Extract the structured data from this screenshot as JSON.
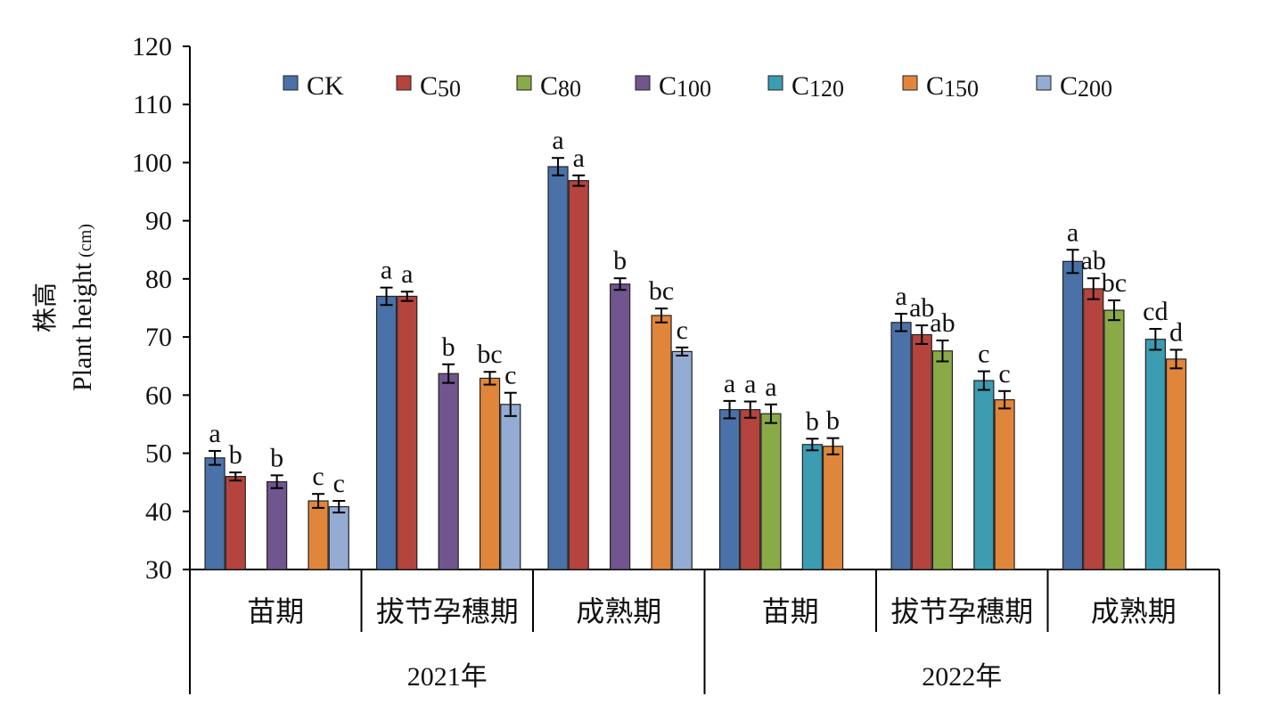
{
  "chart_data": {
    "type": "bar",
    "title": "",
    "ylabel_cn": "株高",
    "ylabel_en": "Plant height",
    "ylabel_unit": "(cm)",
    "ylim": [
      30,
      120
    ],
    "yticks": [
      30,
      40,
      50,
      60,
      70,
      80,
      90,
      100,
      110,
      120
    ],
    "grid": false,
    "legend_position": "top",
    "series": [
      {
        "name": "CK",
        "label_main": "CK",
        "label_sub": "",
        "color": "#4a72a8"
      },
      {
        "name": "C50",
        "label_main": "C",
        "label_sub": "50",
        "color": "#b5443e"
      },
      {
        "name": "C80",
        "label_main": "C",
        "label_sub": "80",
        "color": "#8aaa48"
      },
      {
        "name": "C100",
        "label_main": "C",
        "label_sub": "100",
        "color": "#71558f"
      },
      {
        "name": "C120",
        "label_main": "C",
        "label_sub": "120",
        "color": "#3c9cb2"
      },
      {
        "name": "C150",
        "label_main": "C",
        "label_sub": "150",
        "color": "#e0863a"
      },
      {
        "name": "C200",
        "label_main": "C",
        "label_sub": "200",
        "color": "#94abd4"
      }
    ],
    "years": [
      {
        "label": "2021年",
        "stages": [
          {
            "label": "苗期",
            "bars": [
              {
                "series": "CK",
                "value": 49.2,
                "error": 1.2,
                "letter": "a"
              },
              {
                "series": "C50",
                "value": 46.0,
                "error": 0.7,
                "letter": "b"
              },
              {
                "series": "C100",
                "value": 45.1,
                "error": 1.1,
                "letter": "b"
              },
              {
                "series": "C150",
                "value": 41.8,
                "error": 1.2,
                "letter": "c"
              },
              {
                "series": "C200",
                "value": 40.8,
                "error": 1.0,
                "letter": "c"
              }
            ]
          },
          {
            "label": "拔节孕穗期",
            "bars": [
              {
                "series": "CK",
                "value": 77.0,
                "error": 1.5,
                "letter": "a"
              },
              {
                "series": "C50",
                "value": 77.0,
                "error": 0.8,
                "letter": "a"
              },
              {
                "series": "C100",
                "value": 63.7,
                "error": 1.6,
                "letter": "b"
              },
              {
                "series": "C150",
                "value": 62.9,
                "error": 1.1,
                "letter": "bc"
              },
              {
                "series": "C200",
                "value": 58.4,
                "error": 2.0,
                "letter": "c"
              }
            ]
          },
          {
            "label": "成熟期",
            "bars": [
              {
                "series": "CK",
                "value": 99.3,
                "error": 1.5,
                "letter": "a"
              },
              {
                "series": "C50",
                "value": 96.9,
                "error": 0.9,
                "letter": "a"
              },
              {
                "series": "C100",
                "value": 79.1,
                "error": 1.0,
                "letter": "b"
              },
              {
                "series": "C150",
                "value": 73.7,
                "error": 1.2,
                "letter": "bc"
              },
              {
                "series": "C200",
                "value": 67.5,
                "error": 0.7,
                "letter": "c"
              }
            ]
          }
        ]
      },
      {
        "label": "2022年",
        "stages": [
          {
            "label": "苗期",
            "bars": [
              {
                "series": "CK",
                "value": 57.5,
                "error": 1.5,
                "letter": "a"
              },
              {
                "series": "C50",
                "value": 57.5,
                "error": 1.4,
                "letter": "a"
              },
              {
                "series": "C80",
                "value": 56.8,
                "error": 1.6,
                "letter": "a"
              },
              {
                "series": "C120",
                "value": 51.5,
                "error": 1.0,
                "letter": "b"
              },
              {
                "series": "C150",
                "value": 51.2,
                "error": 1.4,
                "letter": "b"
              }
            ]
          },
          {
            "label": "拔节孕穗期",
            "bars": [
              {
                "series": "CK",
                "value": 72.5,
                "error": 1.5,
                "letter": "a"
              },
              {
                "series": "C50",
                "value": 70.4,
                "error": 1.6,
                "letter": "ab"
              },
              {
                "series": "C80",
                "value": 67.6,
                "error": 1.8,
                "letter": "ab"
              },
              {
                "series": "C120",
                "value": 62.5,
                "error": 1.6,
                "letter": "c"
              },
              {
                "series": "C150",
                "value": 59.2,
                "error": 1.5,
                "letter": "c"
              }
            ]
          },
          {
            "label": "成熟期",
            "bars": [
              {
                "series": "CK",
                "value": 83.0,
                "error": 2.0,
                "letter": "a"
              },
              {
                "series": "C50",
                "value": 78.3,
                "error": 1.8,
                "letter": "ab"
              },
              {
                "series": "C80",
                "value": 74.6,
                "error": 1.7,
                "letter": "bc"
              },
              {
                "series": "C120",
                "value": 69.6,
                "error": 1.8,
                "letter": "cd"
              },
              {
                "series": "C150",
                "value": 66.2,
                "error": 1.6,
                "letter": "d"
              }
            ]
          }
        ]
      }
    ]
  }
}
